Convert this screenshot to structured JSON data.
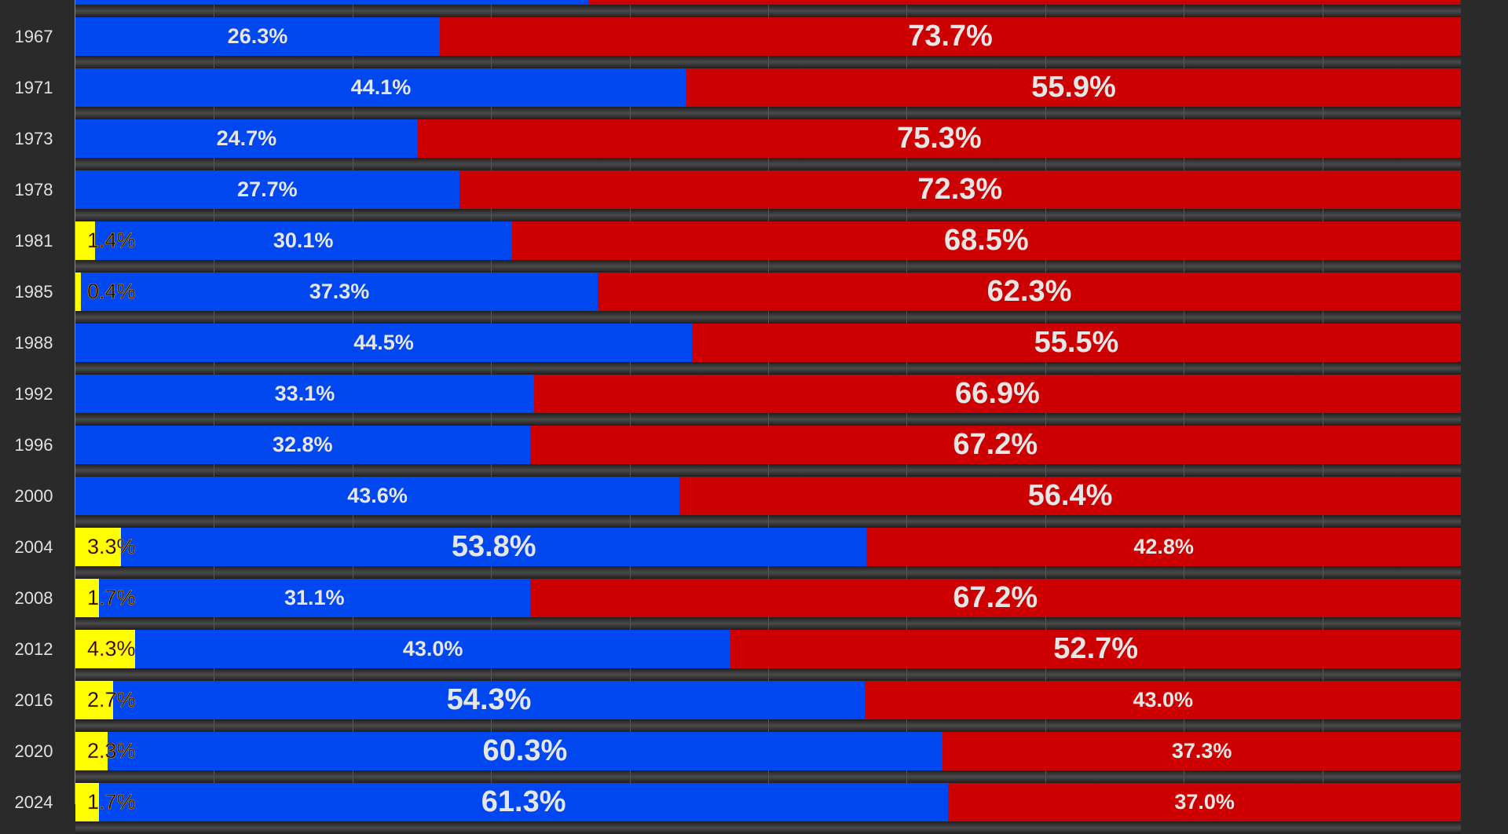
{
  "chart_data": {
    "type": "bar",
    "orientation": "horizontal",
    "stacked": true,
    "xlim": [
      0,
      100
    ],
    "grid": true,
    "colors": {
      "third": "#ffff00",
      "blue": "#0047f0",
      "red": "#cc0000",
      "background": "#2a2a2a"
    },
    "rows": [
      {
        "year": "",
        "third": 0,
        "blue": 37.1,
        "red": 62.9,
        "labels_visible": false
      },
      {
        "year": "1967",
        "third": 0,
        "blue": 26.3,
        "red": 73.7
      },
      {
        "year": "1971",
        "third": 0,
        "blue": 44.1,
        "red": 55.9
      },
      {
        "year": "1973",
        "third": 0,
        "blue": 24.7,
        "red": 75.3
      },
      {
        "year": "1978",
        "third": 0,
        "blue": 27.7,
        "red": 72.3
      },
      {
        "year": "1981",
        "third": 1.4,
        "blue": 30.1,
        "red": 68.5
      },
      {
        "year": "1985",
        "third": 0.4,
        "blue": 37.3,
        "red": 62.3
      },
      {
        "year": "1988",
        "third": 0,
        "blue": 44.5,
        "red": 55.5
      },
      {
        "year": "1992",
        "third": 0,
        "blue": 33.1,
        "red": 66.9
      },
      {
        "year": "1996",
        "third": 0,
        "blue": 32.8,
        "red": 67.2
      },
      {
        "year": "2000",
        "third": 0,
        "blue": 43.6,
        "red": 56.4
      },
      {
        "year": "2004",
        "third": 3.3,
        "blue": 53.8,
        "red": 42.8
      },
      {
        "year": "2008",
        "third": 1.7,
        "blue": 31.1,
        "red": 67.2
      },
      {
        "year": "2012",
        "third": 4.3,
        "blue": 43.0,
        "red": 52.7
      },
      {
        "year": "2016",
        "third": 2.7,
        "blue": 54.3,
        "red": 43.0
      },
      {
        "year": "2020",
        "third": 2.3,
        "blue": 60.3,
        "red": 37.3
      },
      {
        "year": "2024",
        "third": 1.7,
        "blue": 61.3,
        "red": 37.0
      }
    ]
  }
}
